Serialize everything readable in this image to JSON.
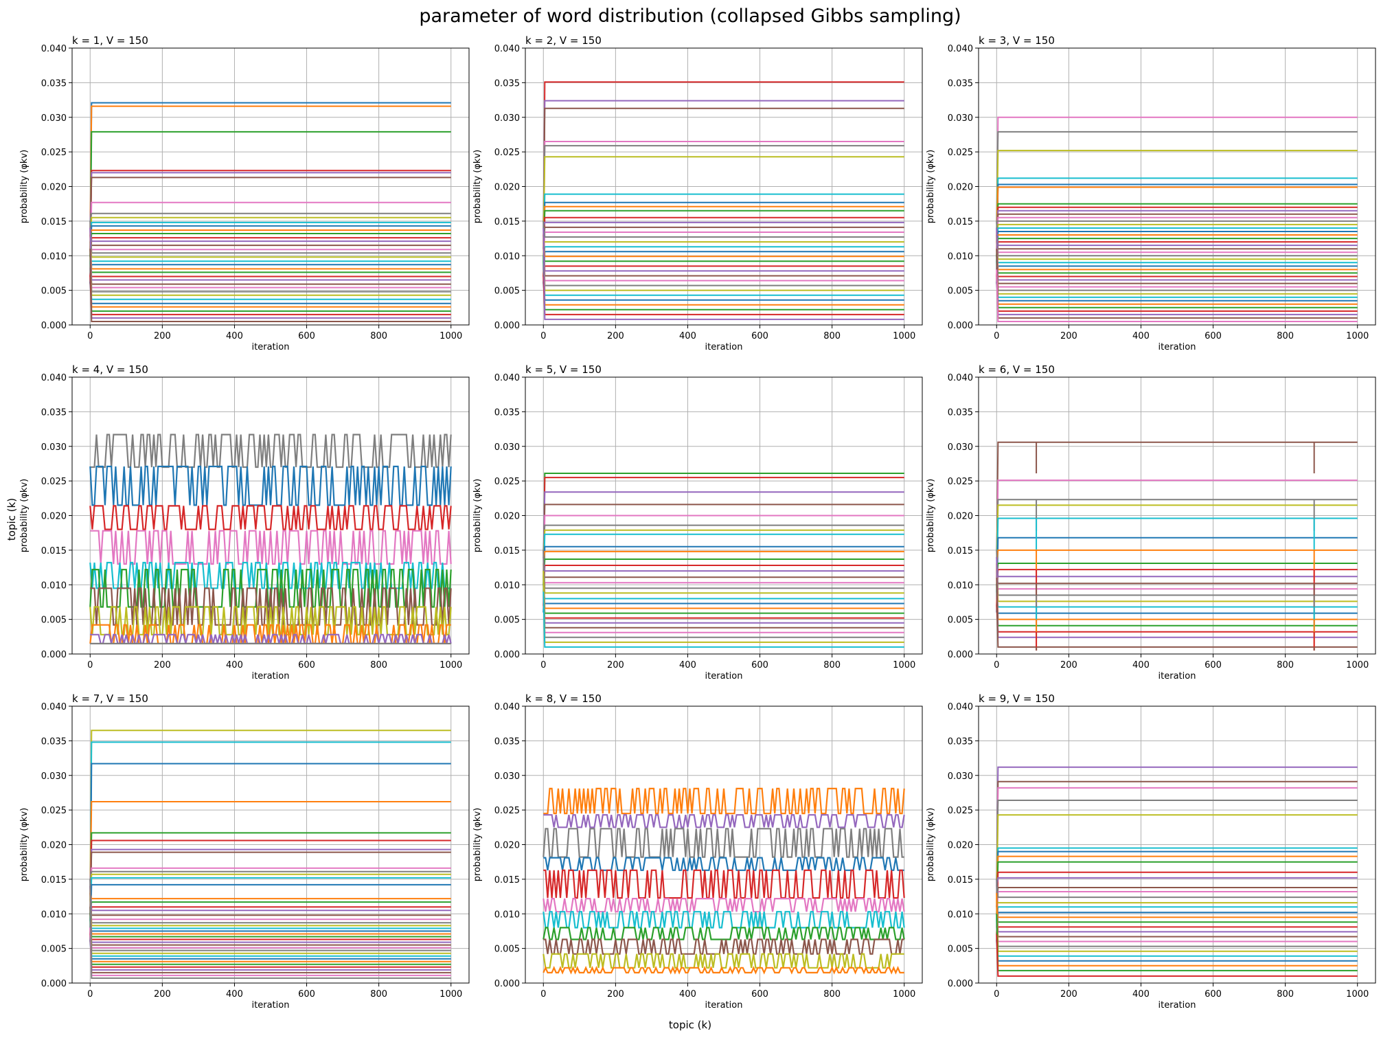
{
  "figure": {
    "suptitle": "parameter of word distribution (collapsed Gibbs sampling)",
    "supxlabel": "topic (k)",
    "supylabel": "topic (k)"
  },
  "chart_data": [
    {
      "type": "line",
      "title": "k = 1, V = 150",
      "xlabel": "iteration",
      "ylabel": "probability (φkv)",
      "xlim": [
        -50,
        1050
      ],
      "ylim": [
        0,
        0.04
      ],
      "xticks": [
        0,
        200,
        400,
        600,
        800,
        1000
      ],
      "yticks": [
        0.0,
        0.005,
        0.01,
        0.015,
        0.02,
        0.025,
        0.03,
        0.035,
        0.04
      ],
      "grid": true,
      "pattern": "steady",
      "levels": [
        0.0321,
        0.0316,
        0.0279,
        0.0223,
        0.022,
        0.0213,
        0.0177,
        0.0161,
        0.0155,
        0.0148,
        0.0143,
        0.0137,
        0.0132,
        0.0126,
        0.0121,
        0.0115,
        0.0109,
        0.0104,
        0.0098,
        0.0092,
        0.0087,
        0.0081,
        0.0076,
        0.007,
        0.0065,
        0.0059,
        0.0054,
        0.0048,
        0.0043,
        0.0037,
        0.0031,
        0.0026,
        0.002,
        0.0015,
        0.001,
        0.0005
      ]
    },
    {
      "type": "line",
      "title": "k = 2, V = 150",
      "xlabel": "iteration",
      "ylabel": "probability (φkv)",
      "xlim": [
        -50,
        1050
      ],
      "ylim": [
        0,
        0.04
      ],
      "xticks": [
        0,
        200,
        400,
        600,
        800,
        1000
      ],
      "yticks": [
        0.0,
        0.005,
        0.01,
        0.015,
        0.02,
        0.025,
        0.03,
        0.035,
        0.04
      ],
      "grid": true,
      "pattern": "steady",
      "levels": [
        0.0351,
        0.0324,
        0.0313,
        0.0265,
        0.0259,
        0.0243,
        0.0189,
        0.0177,
        0.0171,
        0.0165,
        0.0155,
        0.0148,
        0.0141,
        0.0134,
        0.0127,
        0.012,
        0.0113,
        0.0106,
        0.0099,
        0.0092,
        0.0085,
        0.0078,
        0.0071,
        0.0064,
        0.0057,
        0.005,
        0.0043,
        0.0036,
        0.0029,
        0.0022,
        0.0015,
        0.0008
      ]
    },
    {
      "type": "line",
      "title": "k = 3, V = 150",
      "xlabel": "iteration",
      "ylabel": "probability (φkv)",
      "xlim": [
        -50,
        1050
      ],
      "ylim": [
        0,
        0.04
      ],
      "xticks": [
        0,
        200,
        400,
        600,
        800,
        1000
      ],
      "yticks": [
        0.0,
        0.005,
        0.01,
        0.015,
        0.02,
        0.025,
        0.03,
        0.035,
        0.04
      ],
      "grid": true,
      "pattern": "steady",
      "levels": [
        0.03,
        0.0279,
        0.0252,
        0.0212,
        0.0203,
        0.0199,
        0.0175,
        0.017,
        0.0165,
        0.016,
        0.0155,
        0.015,
        0.0145,
        0.014,
        0.0135,
        0.013,
        0.0125,
        0.012,
        0.0115,
        0.011,
        0.0105,
        0.01,
        0.0095,
        0.009,
        0.0085,
        0.008,
        0.0075,
        0.007,
        0.0065,
        0.006,
        0.0055,
        0.005,
        0.0045,
        0.004,
        0.0035,
        0.003,
        0.0025,
        0.002,
        0.0015,
        0.001,
        0.0005
      ]
    },
    {
      "type": "line",
      "title": "k = 4, V = 150",
      "xlabel": "iteration",
      "ylabel": "probability (φkv)",
      "xlim": [
        -50,
        1050
      ],
      "ylim": [
        0,
        0.04
      ],
      "xticks": [
        0,
        200,
        400,
        600,
        800,
        1000
      ],
      "yticks": [
        0.0,
        0.005,
        0.01,
        0.015,
        0.02,
        0.025,
        0.03,
        0.035,
        0.04
      ],
      "grid": true,
      "pattern": "oscillating",
      "levels": [
        0.0317,
        0.0271,
        0.0214,
        0.0178,
        0.0132,
        0.0122,
        0.0095,
        0.0068,
        0.0042,
        0.0028,
        0.0015
      ],
      "band_low": [
        0.027,
        0.0215,
        0.018,
        0.013,
        0.0095,
        0.0068,
        0.0042,
        0.0028,
        0.0015,
        0.0015,
        0.0015
      ]
    },
    {
      "type": "line",
      "title": "k = 5, V = 150",
      "xlabel": "iteration",
      "ylabel": "probability (φkv)",
      "xlim": [
        -50,
        1050
      ],
      "ylim": [
        0,
        0.04
      ],
      "xticks": [
        0,
        200,
        400,
        600,
        800,
        1000
      ],
      "yticks": [
        0.0,
        0.005,
        0.01,
        0.015,
        0.02,
        0.025,
        0.03,
        0.035,
        0.04
      ],
      "grid": true,
      "pattern": "steady",
      "levels": [
        0.0261,
        0.0255,
        0.0234,
        0.0216,
        0.02,
        0.0186,
        0.0179,
        0.0173,
        0.0155,
        0.0148,
        0.0137,
        0.0128,
        0.012,
        0.0111,
        0.0103,
        0.0095,
        0.0088,
        0.008,
        0.0073,
        0.0066,
        0.0059,
        0.0052,
        0.0045,
        0.0038,
        0.0031,
        0.0024,
        0.0017,
        0.001
      ]
    },
    {
      "type": "line",
      "title": "k = 6, V = 150",
      "xlabel": "iteration",
      "ylabel": "probability (φkv)",
      "xlim": [
        -50,
        1050
      ],
      "ylim": [
        0,
        0.04
      ],
      "xticks": [
        0,
        200,
        400,
        600,
        800,
        1000
      ],
      "yticks": [
        0.0,
        0.005,
        0.01,
        0.015,
        0.02,
        0.025,
        0.03,
        0.035,
        0.04
      ],
      "grid": true,
      "pattern": "spikes",
      "spikes_at": [
        110,
        880
      ],
      "levels": [
        0.0306,
        0.0251,
        0.0223,
        0.0215,
        0.0196,
        0.0168,
        0.015,
        0.0131,
        0.0122,
        0.0112,
        0.0102,
        0.0094,
        0.0085,
        0.0076,
        0.0068,
        0.0059,
        0.005,
        0.0041,
        0.0032,
        0.0024,
        0.001
      ]
    },
    {
      "type": "line",
      "title": "k = 7, V = 150",
      "xlabel": "iteration",
      "ylabel": "probability (φkv)",
      "xlim": [
        -50,
        1050
      ],
      "ylim": [
        0,
        0.04
      ],
      "xticks": [
        0,
        200,
        400,
        600,
        800,
        1000
      ],
      "yticks": [
        0.0,
        0.005,
        0.01,
        0.015,
        0.02,
        0.025,
        0.03,
        0.035,
        0.04
      ],
      "grid": true,
      "pattern": "steady",
      "levels": [
        0.0365,
        0.0348,
        0.0317,
        0.0262,
        0.0217,
        0.0206,
        0.0193,
        0.0189,
        0.0166,
        0.0161,
        0.0157,
        0.0152,
        0.0142,
        0.0122,
        0.0117,
        0.011,
        0.0105,
        0.0098,
        0.0092,
        0.0087,
        0.0083,
        0.0079,
        0.0075,
        0.0071,
        0.0067,
        0.0063,
        0.0059,
        0.0055,
        0.0051,
        0.0047,
        0.0043,
        0.0039,
        0.0035,
        0.0031,
        0.0027,
        0.0023,
        0.0019,
        0.0015,
        0.0011,
        0.0007
      ]
    },
    {
      "type": "line",
      "title": "k = 8, V = 150",
      "xlabel": "iteration",
      "ylabel": "probability (φkv)",
      "xlim": [
        -50,
        1050
      ],
      "ylim": [
        0,
        0.04
      ],
      "xticks": [
        0,
        200,
        400,
        600,
        800,
        1000
      ],
      "yticks": [
        0.0,
        0.005,
        0.01,
        0.015,
        0.02,
        0.025,
        0.03,
        0.035,
        0.04
      ],
      "grid": true,
      "pattern": "oscillating",
      "levels": [
        0.0281,
        0.0243,
        0.0223,
        0.0181,
        0.0163,
        0.0122,
        0.0103,
        0.008,
        0.0063,
        0.0042,
        0.0022
      ],
      "band_low": [
        0.0245,
        0.0225,
        0.0182,
        0.0163,
        0.0123,
        0.0103,
        0.008,
        0.0063,
        0.0042,
        0.0022,
        0.0015
      ]
    },
    {
      "type": "line",
      "title": "k = 9, V = 150",
      "xlabel": "iteration",
      "ylabel": "probability (φkv)",
      "xlim": [
        -50,
        1050
      ],
      "ylim": [
        0,
        0.04
      ],
      "xticks": [
        0,
        200,
        400,
        600,
        800,
        1000
      ],
      "yticks": [
        0.0,
        0.005,
        0.01,
        0.015,
        0.02,
        0.025,
        0.03,
        0.035,
        0.04
      ],
      "grid": true,
      "pattern": "steady",
      "levels": [
        0.0312,
        0.0291,
        0.0282,
        0.0264,
        0.0243,
        0.0195,
        0.019,
        0.0183,
        0.0175,
        0.016,
        0.0152,
        0.0138,
        0.0132,
        0.0124,
        0.0116,
        0.011,
        0.0102,
        0.0095,
        0.0088,
        0.0081,
        0.0074,
        0.0067,
        0.006,
        0.0053,
        0.0046,
        0.0039,
        0.0032,
        0.0025,
        0.0018,
        0.001
      ]
    }
  ],
  "colors": [
    "#1f77b4",
    "#ff7f0e",
    "#2ca02c",
    "#d62728",
    "#9467bd",
    "#8c564b",
    "#e377c2",
    "#7f7f7f",
    "#bcbd22",
    "#17becf"
  ]
}
